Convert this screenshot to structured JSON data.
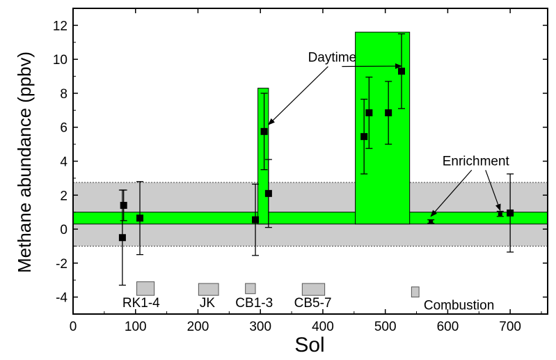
{
  "chart_data": {
    "type": "scatter",
    "xlabel": "Sol",
    "ylabel": "Methane abundance (ppbv)",
    "xlim": [
      0,
      760
    ],
    "ylim": [
      -5,
      13
    ],
    "x_ticks": [
      0,
      100,
      200,
      300,
      400,
      500,
      600,
      700
    ],
    "y_ticks": [
      -4,
      -2,
      0,
      2,
      4,
      6,
      8,
      10,
      12
    ],
    "grid": false,
    "points": [
      {
        "x": 79,
        "y": -0.5,
        "err": 2.8
      },
      {
        "x": 81,
        "y": 1.4,
        "err": 0.9
      },
      {
        "x": 107,
        "y": 0.65,
        "err": 2.15
      },
      {
        "x": 292,
        "y": 0.55,
        "err": 2.1
      },
      {
        "x": 306,
        "y": 5.75,
        "err": 2.25
      },
      {
        "x": 313,
        "y": 2.1,
        "err": 2.0
      },
      {
        "x": 466,
        "y": 5.45,
        "err": 2.2
      },
      {
        "x": 474,
        "y": 6.85,
        "err": 2.1
      },
      {
        "x": 505,
        "y": 6.85,
        "err": 1.85
      },
      {
        "x": 526,
        "y": 9.3,
        "err": 2.2
      },
      {
        "x": 573,
        "y": 0.45,
        "err": 0.1
      },
      {
        "x": 684,
        "y": 0.9,
        "err": 0.15
      },
      {
        "x": 700,
        "y": 0.95,
        "err": 2.3
      }
    ],
    "background_band": {
      "y_range": [
        -1.0,
        2.75
      ],
      "color": "#cccccc"
    },
    "baseline_band": {
      "x_range": [
        0,
        760
      ],
      "y_range": [
        0.3,
        1.0
      ],
      "color": "#00ff00"
    },
    "daytime_bars": [
      {
        "x_range": [
          296,
          313
        ],
        "y_range": [
          0.3,
          8.3
        ],
        "color": "#00ff00"
      },
      {
        "x_range": [
          452,
          539
        ],
        "y_range": [
          0.3,
          11.6
        ],
        "color": "#00ff00"
      }
    ],
    "activity_boxes": [
      {
        "label": "RK1-4",
        "x_range": [
          102,
          130
        ],
        "y_range": [
          -3.9,
          -3.1
        ]
      },
      {
        "label": "JK",
        "x_range": [
          201,
          233
        ],
        "y_range": [
          -3.9,
          -3.2
        ]
      },
      {
        "label": "CB1-3",
        "x_range": [
          276,
          292
        ],
        "y_range": [
          -3.8,
          -3.2
        ]
      },
      {
        "label": "CB5-7",
        "x_range": [
          367,
          403
        ],
        "y_range": [
          -3.9,
          -3.2
        ]
      },
      {
        "label": "Combustion",
        "x_range": [
          542,
          554
        ],
        "y_range": [
          -4.0,
          -3.4
        ]
      }
    ],
    "activity_labels": [
      {
        "text": "RK1-4",
        "x": 109,
        "y": -4.3
      },
      {
        "text": "JK",
        "x": 215,
        "y": -4.3
      },
      {
        "text": "CB1-3",
        "x": 290,
        "y": -4.3
      },
      {
        "text": "CB5-7",
        "x": 384,
        "y": -4.3
      },
      {
        "text": "Combustion",
        "x": 618,
        "y": -4.45
      }
    ],
    "annotations": [
      {
        "text": "Daytime",
        "x": 415,
        "y": 10.15,
        "arrows_to": [
          {
            "x": 313,
            "y": 6.15
          },
          {
            "x": 526,
            "y": 9.6
          }
        ]
      },
      {
        "text": "Enrichment",
        "x": 645,
        "y": 4.05,
        "arrows_to": [
          {
            "x": 573,
            "y": 0.75
          },
          {
            "x": 684,
            "y": 1.1
          }
        ]
      }
    ]
  }
}
